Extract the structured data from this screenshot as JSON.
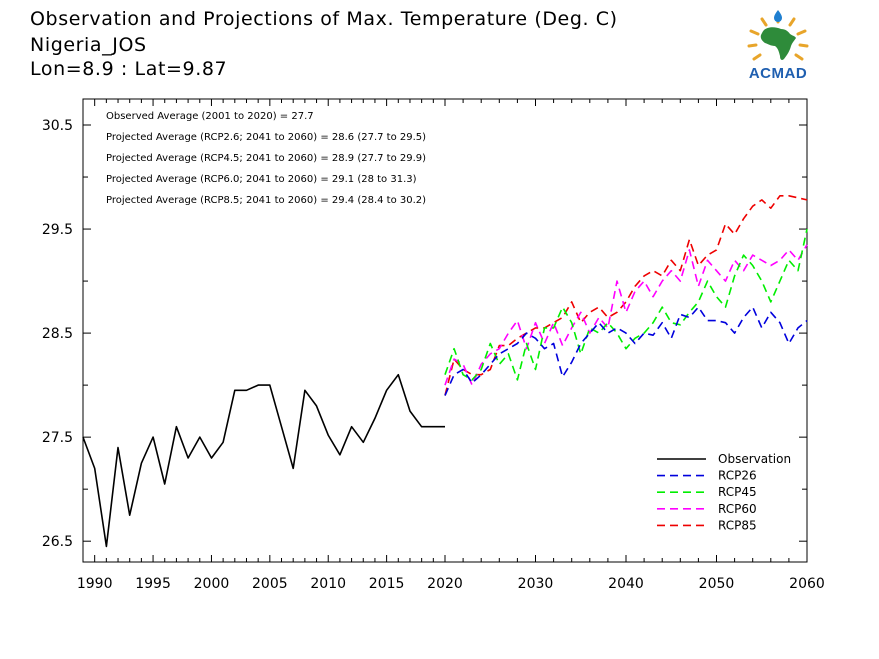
{
  "titles": {
    "line1": "Observation and Projections of Max. Temperature (Deg. C)",
    "line2": "Nigeria_JOS",
    "line3": "Lon=8.9 : Lat=9.87"
  },
  "logo": {
    "text": "ACMAD",
    "icon": "africa-sun-logo-icon"
  },
  "annotations": [
    "Observed Average (2001 to 2020) = 27.7",
    "Projected Average (RCP2.6; 2041 to 2060) = 28.6 (27.7 to 29.5)",
    "Projected Average (RCP4.5; 2041 to 2060) = 28.9 (27.7 to 29.9)",
    "Projected Average (RCP6.0; 2041 to 2060) = 29.1 (28 to 31.3)",
    "Projected Average (RCP8.5; 2041 to 2060) = 29.4 (28.4 to 30.2)"
  ],
  "chart_data": {
    "type": "line",
    "xlim": [
      1989,
      2060
    ],
    "ylim": [
      26.3,
      30.75
    ],
    "yticks": [
      26.5,
      27.5,
      28.5,
      29.5,
      30.5
    ],
    "ytick_labels": [
      "26.5",
      "27.5",
      "28.5",
      "29.5",
      "30.5"
    ],
    "xticks_obs": [
      1990,
      1995,
      2000,
      2005,
      2010,
      2015,
      2020
    ],
    "xtick_labels_obs": [
      "1990",
      "1995",
      "2000",
      "2005",
      "2010",
      "2015",
      "2020"
    ],
    "xticks_proj": [
      2030,
      2040,
      2050,
      2060
    ],
    "xtick_labels_proj": [
      "2030",
      "2040",
      "2050",
      "2060"
    ],
    "legend_position": "bottom-right",
    "series": [
      {
        "name": "Observation",
        "color": "#000000",
        "dashed": false,
        "x": [
          1989,
          1990,
          1991,
          1992,
          1993,
          1994,
          1995,
          1996,
          1997,
          1998,
          1999,
          2000,
          2001,
          2002,
          2003,
          2004,
          2005,
          2006,
          2007,
          2008,
          2009,
          2010,
          2011,
          2012,
          2013,
          2014,
          2015,
          2016,
          2017,
          2018,
          2019,
          2020
        ],
        "y": [
          27.5,
          27.2,
          26.45,
          27.4,
          26.75,
          27.25,
          27.5,
          27.05,
          27.6,
          27.3,
          27.5,
          27.3,
          27.45,
          27.95,
          27.95,
          28.0,
          28.0,
          27.6,
          27.2,
          27.95,
          27.8,
          27.52,
          27.33,
          27.6,
          27.45,
          27.68,
          27.95,
          28.1,
          27.75,
          27.6,
          27.6,
          27.6
        ]
      },
      {
        "name": "RCP26",
        "color": "#0000dd",
        "dashed": true,
        "x": [
          2020,
          2021,
          2022,
          2023,
          2024,
          2025,
          2026,
          2027,
          2028,
          2029,
          2030,
          2031,
          2032,
          2033,
          2034,
          2035,
          2036,
          2037,
          2038,
          2039,
          2040,
          2041,
          2042,
          2043,
          2044,
          2045,
          2046,
          2047,
          2048,
          2049,
          2050,
          2051,
          2052,
          2053,
          2054,
          2055,
          2056,
          2057,
          2058,
          2059,
          2060
        ],
        "y": [
          27.9,
          28.1,
          28.15,
          28.02,
          28.1,
          28.2,
          28.3,
          28.35,
          28.4,
          28.5,
          28.45,
          28.35,
          28.4,
          28.08,
          28.22,
          28.4,
          28.5,
          28.6,
          28.5,
          28.55,
          28.5,
          28.4,
          28.5,
          28.48,
          28.6,
          28.45,
          28.68,
          28.65,
          28.75,
          28.62,
          28.62,
          28.6,
          28.5,
          28.65,
          28.75,
          28.55,
          28.7,
          28.6,
          28.4,
          28.55,
          28.62
        ]
      },
      {
        "name": "RCP45",
        "color": "#00ee00",
        "dashed": true,
        "x": [
          2020,
          2021,
          2022,
          2023,
          2024,
          2025,
          2026,
          2027,
          2028,
          2029,
          2030,
          2031,
          2032,
          2033,
          2034,
          2035,
          2036,
          2037,
          2038,
          2039,
          2040,
          2041,
          2042,
          2043,
          2044,
          2045,
          2046,
          2047,
          2048,
          2049,
          2050,
          2051,
          2052,
          2053,
          2054,
          2055,
          2056,
          2057,
          2058,
          2059,
          2060
        ],
        "y": [
          28.1,
          28.35,
          28.1,
          28.05,
          28.15,
          28.4,
          28.2,
          28.3,
          28.05,
          28.4,
          28.15,
          28.55,
          28.55,
          28.75,
          28.6,
          28.3,
          28.55,
          28.5,
          28.6,
          28.5,
          28.35,
          28.45,
          28.5,
          28.6,
          28.75,
          28.6,
          28.58,
          28.7,
          28.8,
          29.0,
          28.85,
          28.75,
          29.05,
          29.25,
          29.15,
          29.0,
          28.8,
          29.0,
          29.2,
          29.1,
          29.5
        ]
      },
      {
        "name": "RCP60",
        "color": "#ff00ff",
        "dashed": true,
        "x": [
          2020,
          2021,
          2022,
          2023,
          2024,
          2025,
          2026,
          2027,
          2028,
          2029,
          2030,
          2031,
          2032,
          2033,
          2034,
          2035,
          2036,
          2037,
          2038,
          2039,
          2040,
          2041,
          2042,
          2043,
          2044,
          2045,
          2046,
          2047,
          2048,
          2049,
          2050,
          2051,
          2052,
          2053,
          2054,
          2055,
          2056,
          2057,
          2058,
          2059,
          2060
        ],
        "y": [
          28.0,
          28.25,
          28.2,
          28.0,
          28.2,
          28.3,
          28.35,
          28.5,
          28.62,
          28.35,
          28.6,
          28.4,
          28.6,
          28.38,
          28.55,
          28.7,
          28.5,
          28.65,
          28.55,
          29.0,
          28.7,
          28.9,
          29.0,
          28.85,
          29.0,
          29.1,
          29.0,
          29.3,
          28.95,
          29.2,
          29.1,
          29.0,
          29.2,
          29.1,
          29.25,
          29.2,
          29.15,
          29.2,
          29.3,
          29.2,
          29.35
        ]
      },
      {
        "name": "RCP85",
        "color": "#ee0000",
        "dashed": true,
        "x": [
          2020,
          2021,
          2022,
          2023,
          2024,
          2025,
          2026,
          2027,
          2028,
          2029,
          2030,
          2031,
          2032,
          2033,
          2034,
          2035,
          2036,
          2037,
          2038,
          2039,
          2040,
          2041,
          2042,
          2043,
          2044,
          2045,
          2046,
          2047,
          2048,
          2049,
          2050,
          2051,
          2052,
          2053,
          2054,
          2055,
          2056,
          2057,
          2058,
          2059,
          2060
        ],
        "y": [
          27.9,
          28.25,
          28.15,
          28.1,
          28.1,
          28.15,
          28.38,
          28.38,
          28.45,
          28.5,
          28.55,
          28.55,
          28.6,
          28.65,
          28.8,
          28.6,
          28.7,
          28.75,
          28.65,
          28.7,
          28.8,
          28.95,
          29.05,
          29.1,
          29.05,
          29.2,
          29.1,
          29.4,
          29.15,
          29.25,
          29.3,
          29.55,
          29.45,
          29.6,
          29.72,
          29.78,
          29.7,
          29.82,
          29.82,
          29.8,
          29.78
        ]
      }
    ]
  }
}
